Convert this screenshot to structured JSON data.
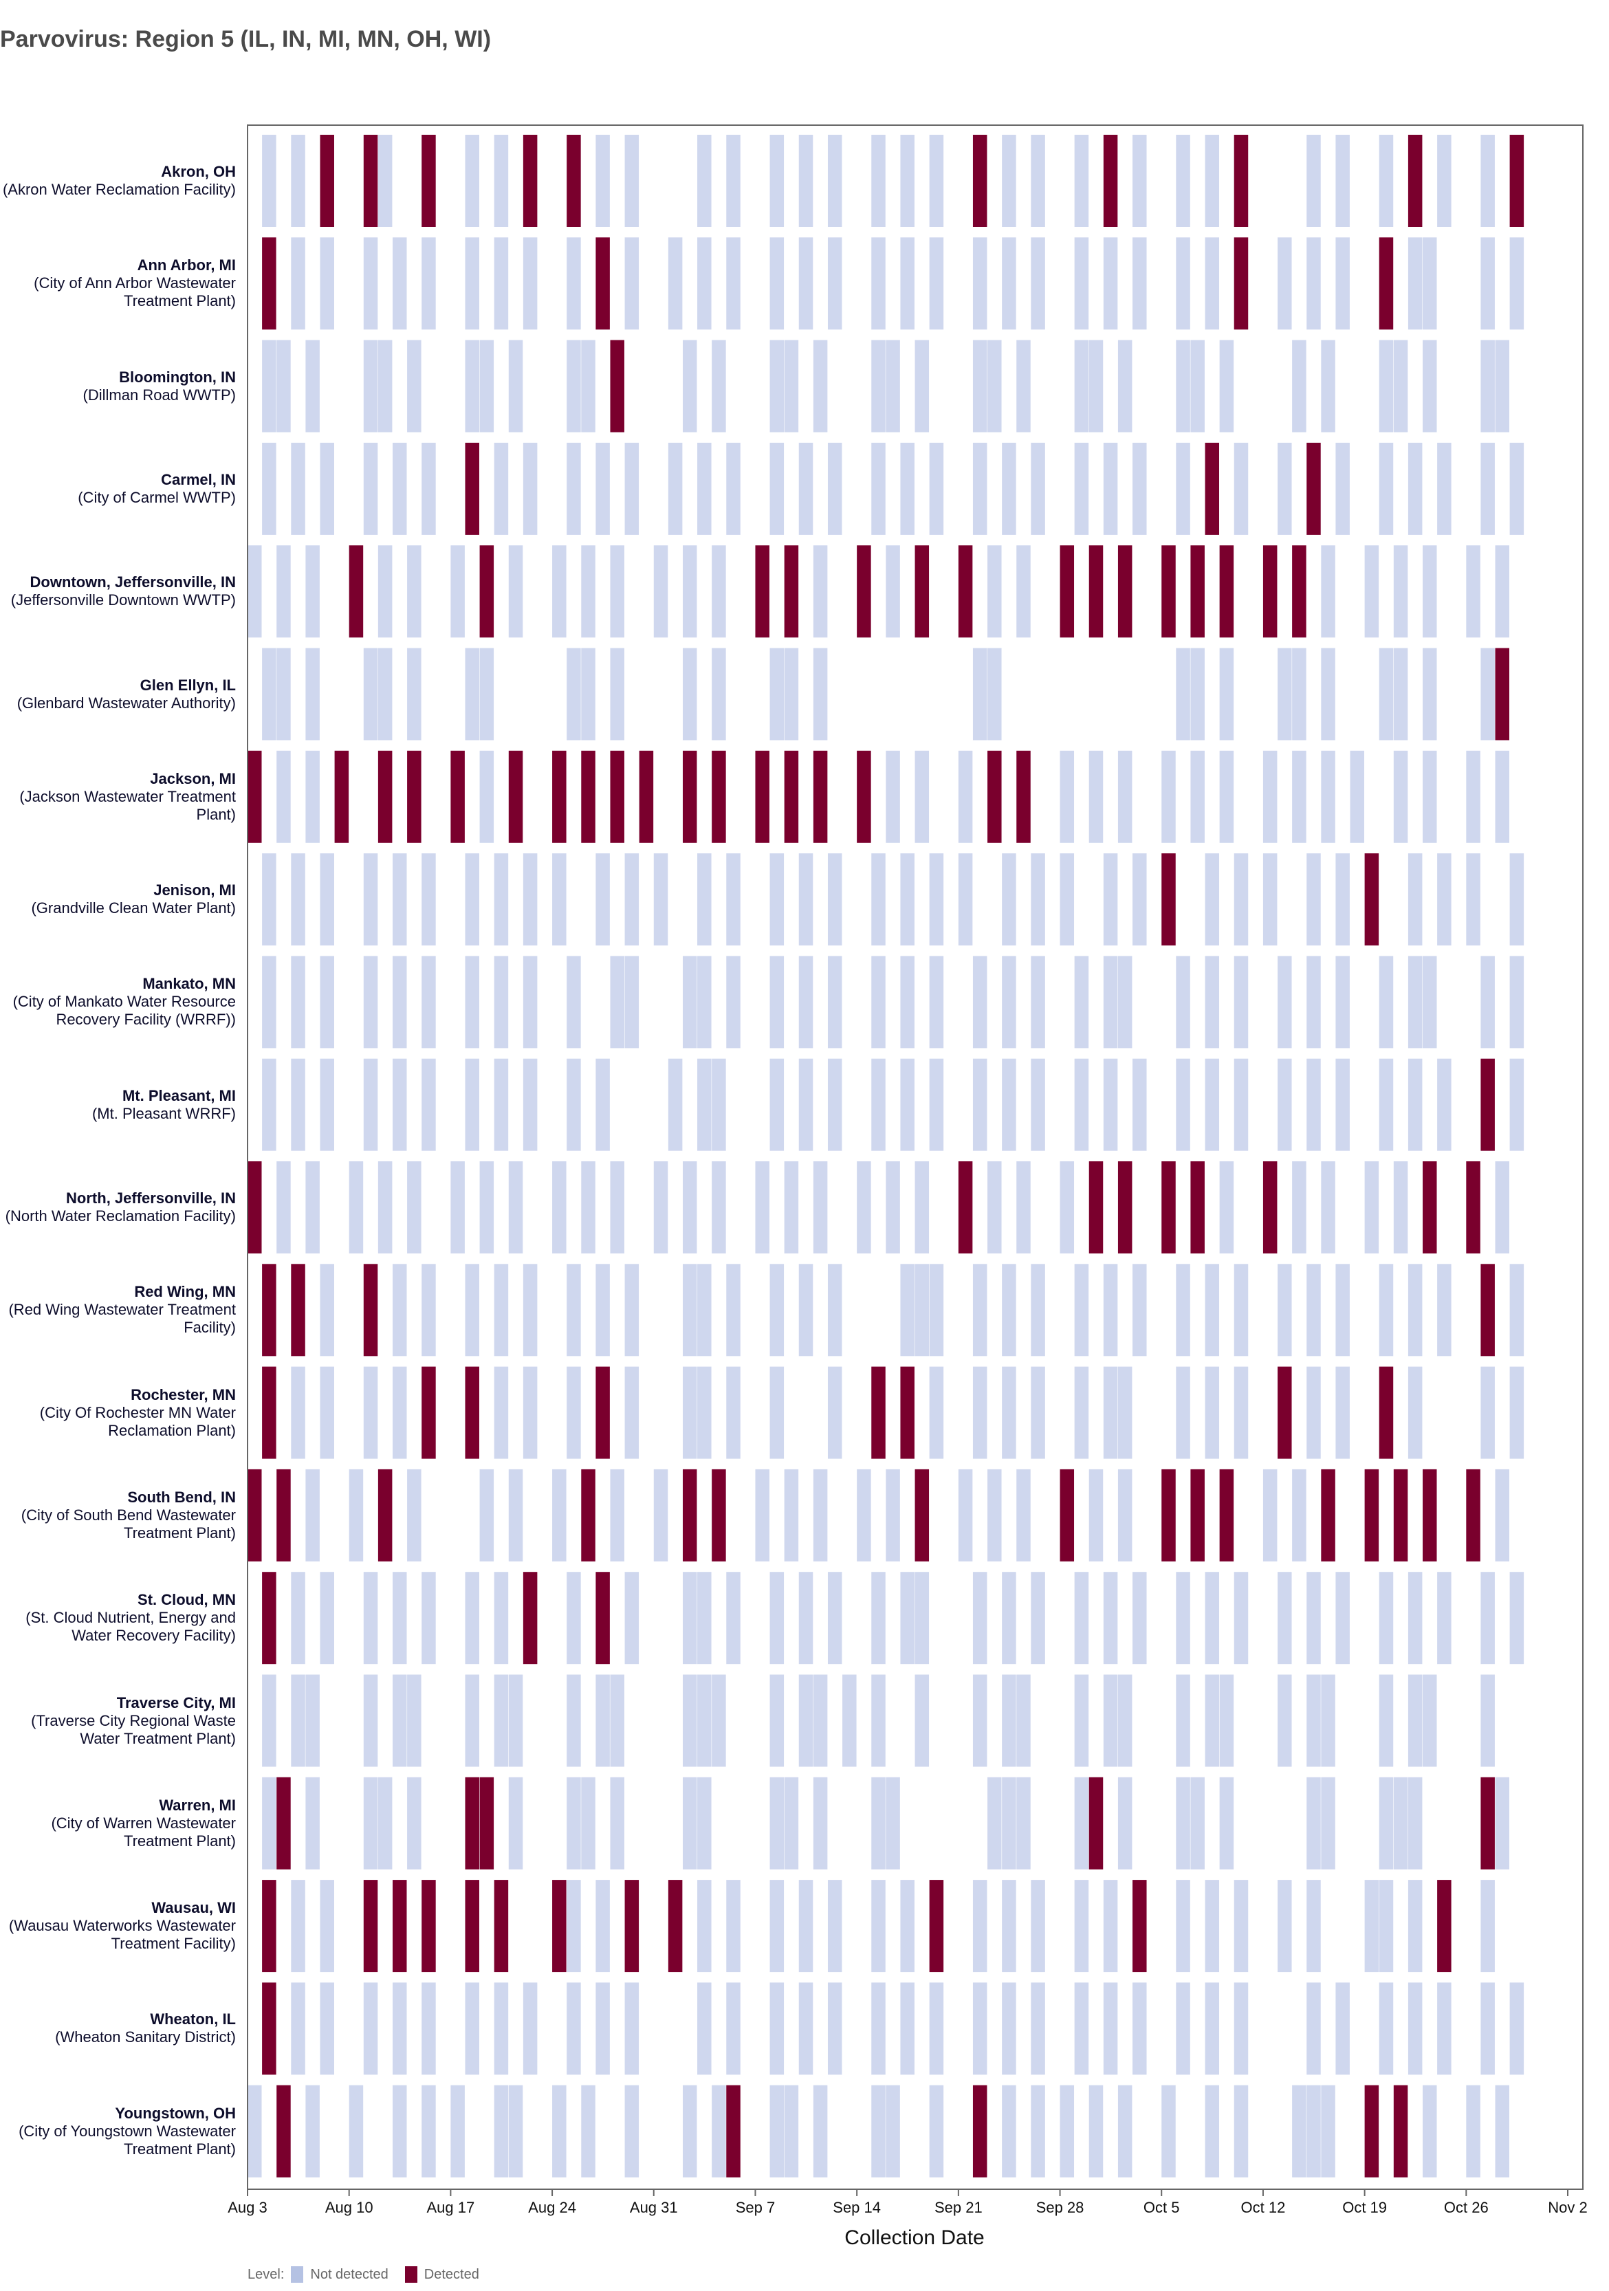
{
  "chart_data": {
    "type": "heatmap",
    "title": "Parvovirus: Region 5 (IL, IN, MI, MN, OH, WI)",
    "xlabel": "Collection Date",
    "x_start_date": "Aug 3",
    "x_day_count": 91,
    "x_ticks": [
      "Aug 3",
      "Aug 10",
      "Aug 17",
      "Aug 24",
      "Aug 31",
      "Sep 7",
      "Sep 14",
      "Sep 21",
      "Sep 28",
      "Oct 5",
      "Oct 12",
      "Oct 19",
      "Oct 26",
      "Nov 2"
    ],
    "x_tick_interval_days": 7,
    "legend": {
      "title": "Level:",
      "not_detected": "Not detected",
      "detected": "Detected",
      "placement": "bottom-left"
    },
    "colors": {
      "not_detected": "#cfd7ee",
      "detected": "#7a002d"
    },
    "note": "nd/d are day offsets from Aug 3",
    "rows": [
      {
        "site": "Akron, OH",
        "facility": "(Akron Water Reclamation Facility)",
        "nd": [
          1,
          3,
          9,
          15,
          17,
          24,
          26,
          31,
          33,
          36,
          38,
          40,
          43,
          45,
          47,
          52,
          54,
          57,
          61,
          64,
          66,
          73,
          75,
          78,
          82,
          85
        ],
        "d": [
          5,
          8,
          12,
          19,
          22,
          50,
          59,
          68,
          80,
          87
        ]
      },
      {
        "site": "Ann Arbor, MI",
        "facility": "(City of Ann Arbor Wastewater Treatment Plant)",
        "nd": [
          3,
          5,
          8,
          10,
          12,
          15,
          17,
          19,
          22,
          26,
          29,
          31,
          33,
          36,
          38,
          40,
          43,
          45,
          47,
          50,
          52,
          54,
          57,
          59,
          61,
          64,
          66,
          71,
          73,
          75,
          80,
          81,
          85,
          87
        ],
        "d": [
          1,
          24,
          68,
          78
        ]
      },
      {
        "site": "Bloomington, IN",
        "facility": "(Dillman Road WWTP)",
        "nd": [
          1,
          2,
          4,
          8,
          9,
          11,
          15,
          16,
          18,
          22,
          23,
          30,
          32,
          36,
          37,
          39,
          43,
          44,
          46,
          50,
          51,
          53,
          57,
          58,
          60,
          64,
          65,
          67,
          72,
          74,
          78,
          79,
          81,
          85,
          86
        ],
        "d": [
          25
        ]
      },
      {
        "site": "Carmel, IN",
        "facility": "(City of Carmel WWTP)",
        "nd": [
          1,
          3,
          5,
          8,
          10,
          12,
          17,
          19,
          22,
          24,
          26,
          29,
          31,
          33,
          36,
          38,
          40,
          43,
          45,
          47,
          50,
          52,
          54,
          57,
          59,
          61,
          64,
          68,
          71,
          75,
          78,
          80,
          82,
          85,
          87
        ],
        "d": [
          15,
          66,
          73
        ]
      },
      {
        "site": "Downtown, Jeffersonville, IN",
        "facility": "(Jeffersonville Downtown WWTP)",
        "nd": [
          0,
          2,
          4,
          9,
          11,
          14,
          18,
          21,
          23,
          25,
          28,
          30,
          32,
          39,
          44,
          51,
          53,
          74,
          77,
          79,
          81,
          84,
          86
        ],
        "d": [
          7,
          16,
          35,
          37,
          42,
          46,
          49,
          56,
          58,
          60,
          63,
          65,
          67,
          70,
          72
        ]
      },
      {
        "site": "Glen Ellyn, IL",
        "facility": "(Glenbard Wastewater Authority)",
        "nd": [
          1,
          2,
          4,
          8,
          9,
          11,
          15,
          16,
          22,
          23,
          25,
          30,
          32,
          36,
          37,
          39,
          50,
          51,
          64,
          65,
          67,
          71,
          72,
          74,
          78,
          79,
          81,
          85
        ],
        "d": [
          86
        ]
      },
      {
        "site": "Jackson, MI",
        "facility": "(Jackson Wastewater Treatment Plant)",
        "nd": [
          2,
          4,
          16,
          44,
          46,
          49,
          56,
          58,
          60,
          63,
          65,
          67,
          70,
          72,
          74,
          76,
          79,
          81,
          84,
          86
        ],
        "d": [
          0,
          6,
          9,
          11,
          14,
          18,
          21,
          23,
          25,
          27,
          30,
          32,
          35,
          37,
          39,
          42,
          51,
          53
        ]
      },
      {
        "site": "Jenison, MI",
        "facility": "(Grandville Clean Water Plant)",
        "nd": [
          1,
          3,
          5,
          8,
          10,
          12,
          15,
          17,
          19,
          21,
          24,
          26,
          28,
          31,
          33,
          36,
          38,
          40,
          43,
          45,
          47,
          49,
          52,
          54,
          56,
          59,
          61,
          66,
          68,
          70,
          73,
          75,
          80,
          82,
          84,
          87
        ],
        "d": [
          63,
          77
        ]
      },
      {
        "site": "Mankato, MN",
        "facility": "(City of Mankato Water Resource Recovery Facility (WRRF))",
        "nd": [
          1,
          3,
          5,
          8,
          10,
          12,
          15,
          17,
          19,
          22,
          25,
          26,
          30,
          31,
          33,
          36,
          38,
          40,
          43,
          45,
          47,
          50,
          52,
          54,
          57,
          59,
          60,
          64,
          66,
          68,
          71,
          73,
          75,
          78,
          80,
          81,
          85,
          87
        ],
        "d": []
      },
      {
        "site": "Mt. Pleasant, MI",
        "facility": "(Mt. Pleasant WRRF)",
        "nd": [
          1,
          3,
          5,
          8,
          10,
          12,
          15,
          17,
          19,
          22,
          24,
          29,
          31,
          32,
          36,
          38,
          40,
          43,
          45,
          47,
          50,
          52,
          54,
          57,
          59,
          61,
          64,
          66,
          68,
          71,
          73,
          75,
          78,
          80,
          82,
          87
        ],
        "d": [
          85
        ]
      },
      {
        "site": "North, Jeffersonville, IN",
        "facility": "(North Water Reclamation Facility)",
        "nd": [
          2,
          4,
          7,
          9,
          11,
          14,
          16,
          18,
          21,
          23,
          25,
          28,
          30,
          32,
          35,
          37,
          39,
          42,
          44,
          46,
          51,
          53,
          56,
          67,
          72,
          74,
          77,
          79,
          86
        ],
        "d": [
          0,
          49,
          58,
          60,
          63,
          65,
          70,
          81,
          84
        ]
      },
      {
        "site": "Red Wing, MN",
        "facility": "(Red Wing Wastewater Treatment Facility)",
        "nd": [
          5,
          10,
          12,
          15,
          17,
          19,
          22,
          24,
          26,
          30,
          31,
          33,
          36,
          38,
          40,
          45,
          46,
          47,
          50,
          52,
          54,
          57,
          59,
          61,
          64,
          66,
          68,
          71,
          73,
          75,
          78,
          80,
          82,
          87
        ],
        "d": [
          1,
          3,
          8,
          85
        ]
      },
      {
        "site": "Rochester, MN",
        "facility": "(City Of Rochester MN Water Reclamation Plant)",
        "nd": [
          3,
          5,
          8,
          10,
          17,
          19,
          22,
          26,
          30,
          31,
          33,
          36,
          40,
          47,
          50,
          52,
          54,
          57,
          59,
          60,
          64,
          66,
          68,
          73,
          75,
          80,
          85,
          87
        ],
        "d": [
          1,
          12,
          15,
          24,
          43,
          45,
          71,
          78
        ]
      },
      {
        "site": "South Bend, IN",
        "facility": "(City of South Bend Wastewater Treatment Plant)",
        "nd": [
          4,
          7,
          11,
          16,
          18,
          21,
          25,
          28,
          35,
          37,
          39,
          42,
          44,
          49,
          51,
          53,
          58,
          60,
          70,
          72,
          86
        ],
        "d": [
          0,
          2,
          9,
          23,
          30,
          32,
          46,
          56,
          63,
          65,
          67,
          74,
          77,
          79,
          81,
          84
        ]
      },
      {
        "site": "St. Cloud, MN",
        "facility": "(St. Cloud Nutrient, Energy and Water Recovery Facility)",
        "nd": [
          3,
          5,
          8,
          10,
          12,
          15,
          17,
          22,
          26,
          30,
          31,
          33,
          36,
          38,
          40,
          43,
          45,
          46,
          50,
          52,
          54,
          57,
          59,
          61,
          64,
          66,
          68,
          71,
          73,
          75,
          78,
          80,
          82,
          85,
          87
        ],
        "d": [
          1,
          19,
          24
        ]
      },
      {
        "site": "Traverse City, MI",
        "facility": "(Traverse City Regional Waste Water Treatment Plant)",
        "nd": [
          1,
          3,
          4,
          8,
          10,
          11,
          15,
          17,
          18,
          22,
          24,
          25,
          30,
          31,
          32,
          36,
          38,
          39,
          41,
          43,
          46,
          50,
          52,
          53,
          57,
          59,
          60,
          64,
          66,
          67,
          71,
          73,
          74,
          78,
          80,
          81,
          85
        ],
        "d": []
      },
      {
        "site": "Warren, MI",
        "facility": "(City of Warren Wastewater Treatment Plant)",
        "nd": [
          1,
          4,
          8,
          9,
          11,
          18,
          22,
          23,
          25,
          30,
          31,
          36,
          37,
          39,
          43,
          44,
          51,
          52,
          53,
          57,
          60,
          64,
          65,
          67,
          73,
          74,
          78,
          79,
          80,
          86
        ],
        "d": [
          2,
          15,
          16,
          58,
          85
        ]
      },
      {
        "site": "Wausau, WI",
        "facility": "(Wausau Waterworks Wastewater Treatment Facility)",
        "nd": [
          3,
          5,
          22,
          24,
          31,
          33,
          36,
          38,
          40,
          43,
          45,
          50,
          52,
          54,
          57,
          59,
          64,
          66,
          68,
          71,
          73,
          77,
          78,
          80,
          85
        ],
        "d": [
          1,
          8,
          10,
          12,
          15,
          17,
          21,
          26,
          29,
          47,
          61,
          82
        ]
      },
      {
        "site": "Wheaton, IL",
        "facility": "(Wheaton Sanitary District)",
        "nd": [
          3,
          5,
          8,
          10,
          12,
          15,
          17,
          19,
          22,
          24,
          26,
          31,
          33,
          36,
          38,
          40,
          43,
          45,
          47,
          50,
          52,
          54,
          57,
          59,
          61,
          64,
          66,
          68,
          73,
          75,
          78,
          80,
          82,
          85,
          87
        ],
        "d": [
          1
        ]
      },
      {
        "site": "Youngstown, OH",
        "facility": "(City of Youngstown Wastewater Treatment Plant)",
        "nd": [
          0,
          4,
          7,
          10,
          12,
          14,
          17,
          18,
          21,
          23,
          26,
          30,
          32,
          36,
          37,
          39,
          43,
          44,
          47,
          52,
          54,
          56,
          58,
          60,
          63,
          66,
          68,
          72,
          73,
          74,
          81,
          84,
          86
        ],
        "d": [
          2,
          33,
          50,
          77,
          79
        ]
      }
    ]
  }
}
